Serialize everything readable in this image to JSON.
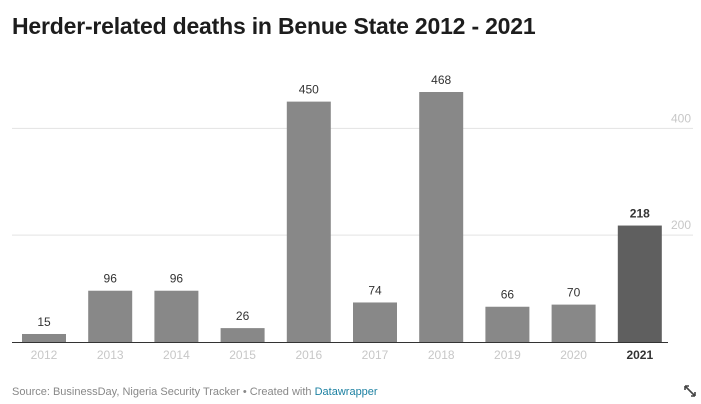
{
  "chart_data": {
    "type": "bar",
    "title": "Herder-related deaths in Benue State 2012 - 2021",
    "categories": [
      "2012",
      "2013",
      "2014",
      "2015",
      "2016",
      "2017",
      "2018",
      "2019",
      "2020",
      "2021"
    ],
    "values": [
      15,
      96,
      96,
      26,
      450,
      74,
      468,
      66,
      70,
      218
    ],
    "highlight": "2021",
    "xlabel": "",
    "ylabel": "",
    "ylim": [
      0,
      500
    ],
    "yticks": [
      200,
      400
    ],
    "grid": true,
    "colors": {
      "bar": "#888888",
      "highlight": "#5f5f5f",
      "grid": "#e3e3e3",
      "tick": "#c7c7c7",
      "label": "#333333",
      "baseline": "#333333"
    }
  },
  "footer": {
    "source_text": "Source: BusinessDay, Nigeria Security Tracker • Created with ",
    "credit_link": "Datawrapper"
  },
  "icons": {
    "resize": "resize-diagonal-icon"
  }
}
